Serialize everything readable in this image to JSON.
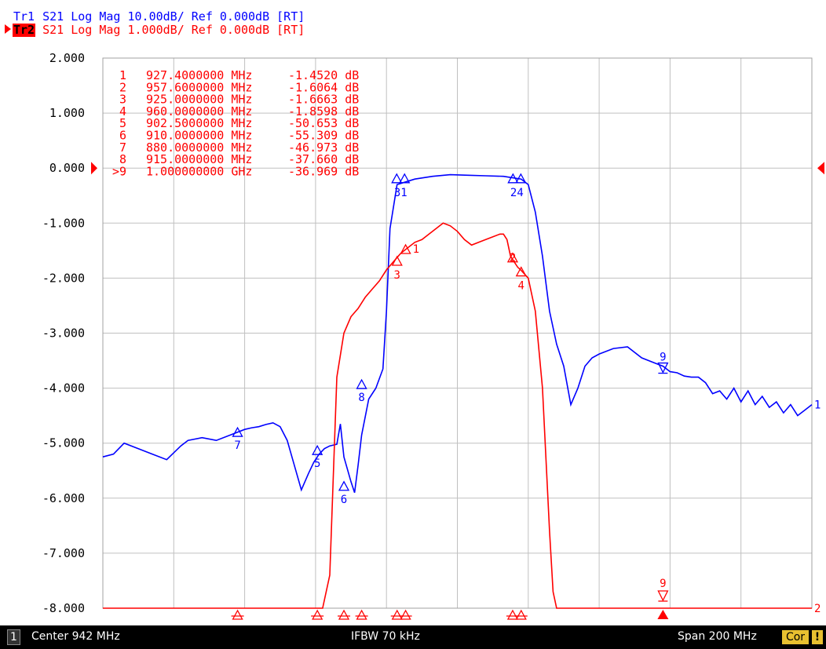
{
  "header": {
    "trace1": {
      "tag": "Tr1",
      "text": " S21 Log Mag 10.00dB/ Ref 0.000dB [RT]"
    },
    "trace2": {
      "tag": "Tr2",
      "text": " S21 Log Mag 1.000dB/ Ref 0.000dB [RT]"
    }
  },
  "status": {
    "channel": "1",
    "center": "Center 942 MHz",
    "ifbw": "IFBW 70 kHz",
    "span": "Span 200 MHz",
    "cor": "Cor",
    "excl": "!"
  },
  "colors": {
    "trace1": "#0000ff",
    "trace2": "#ff0000",
    "grid": "#c0c0c0",
    "axis_text": "#000000"
  },
  "chart_data": {
    "type": "line",
    "xlim": [
      842,
      1042
    ],
    "ylim": [
      -8,
      2
    ],
    "grid": true,
    "yticks": [
      "2.000",
      "1.000",
      "0.000",
      "-1.000",
      "-2.000",
      "-3.000",
      "-4.000",
      "-5.000",
      "-6.000",
      "-7.000",
      "-8.000"
    ],
    "ref_level": 0,
    "series": [
      {
        "name": "Tr1",
        "trace_label": "1",
        "x": [
          842,
          845,
          848,
          852,
          856,
          860,
          864,
          866,
          870,
          874,
          878,
          882,
          884,
          886,
          888,
          890,
          892,
          894,
          896,
          898,
          900,
          901.5,
          903,
          904.5,
          906,
          908,
          909,
          910,
          912,
          913,
          914,
          915,
          917,
          919,
          921,
          922,
          923,
          925,
          930,
          935,
          940,
          945,
          950,
          955,
          958,
          960,
          962,
          964,
          966,
          968,
          970,
          972,
          974,
          976,
          978,
          980,
          982,
          986,
          990,
          994,
          998,
          1000,
          1002,
          1004,
          1006,
          1008,
          1010,
          1012,
          1014,
          1016,
          1018,
          1020,
          1022,
          1024,
          1026,
          1028,
          1030,
          1032,
          1034,
          1036,
          1038,
          1040,
          1042
        ],
        "y": [
          -5.25,
          -5.2,
          -5.0,
          -5.1,
          -5.2,
          -5.3,
          -5.05,
          -4.95,
          -4.9,
          -4.95,
          -4.85,
          -4.75,
          -4.72,
          -4.7,
          -4.66,
          -4.63,
          -4.7,
          -4.95,
          -5.4,
          -5.85,
          -5.55,
          -5.35,
          -5.2,
          -5.1,
          -5.05,
          -5.02,
          -4.65,
          -5.25,
          -5.7,
          -5.9,
          -5.4,
          -4.85,
          -4.2,
          -4.0,
          -3.65,
          -2.6,
          -1.1,
          -0.3,
          -0.2,
          -0.15,
          -0.12,
          -0.13,
          -0.14,
          -0.15,
          -0.18,
          -0.2,
          -0.3,
          -0.8,
          -1.6,
          -2.6,
          -3.2,
          -3.6,
          -4.3,
          -4.0,
          -3.6,
          -3.45,
          -3.38,
          -3.28,
          -3.25,
          -3.45,
          -3.55,
          -3.6,
          -3.7,
          -3.72,
          -3.78,
          -3.8,
          -3.8,
          -3.9,
          -4.1,
          -4.05,
          -4.2,
          -4.0,
          -4.25,
          -4.05,
          -4.3,
          -4.15,
          -4.35,
          -4.25,
          -4.45,
          -4.3,
          -4.5,
          -4.4,
          -4.3
        ]
      },
      {
        "name": "Tr2",
        "trace_label": "2",
        "x": [
          842,
          880,
          903,
          904,
          906,
          908,
          910,
          912,
          914,
          916,
          918,
          920,
          922,
          924,
          926,
          928,
          930,
          932,
          934,
          936,
          938,
          940,
          942,
          944,
          946,
          948,
          950,
          952,
          954,
          955,
          956,
          957,
          958,
          959,
          960,
          962,
          964,
          966,
          968,
          969,
          970,
          1042
        ],
        "y": [
          -8.0,
          -8.0,
          -8.0,
          -8.0,
          -7.4,
          -3.8,
          -3.0,
          -2.7,
          -2.55,
          -2.35,
          -2.2,
          -2.05,
          -1.85,
          -1.7,
          -1.55,
          -1.45,
          -1.35,
          -1.3,
          -1.2,
          -1.1,
          -1.0,
          -1.05,
          -1.15,
          -1.3,
          -1.4,
          -1.35,
          -1.3,
          -1.25,
          -1.2,
          -1.2,
          -1.3,
          -1.6,
          -1.7,
          -1.8,
          -1.86,
          -2.0,
          -2.6,
          -4.0,
          -6.6,
          -7.7,
          -8.0,
          -8.0
        ]
      }
    ],
    "marker_table": [
      {
        "n": "1",
        "freq": "927.4000000 MHz",
        "value": "-1.4520 dB"
      },
      {
        "n": "2",
        "freq": "957.6000000 MHz",
        "value": "-1.6064 dB"
      },
      {
        "n": "3",
        "freq": "925.0000000 MHz",
        "value": "-1.6663 dB"
      },
      {
        "n": "4",
        "freq": "960.0000000 MHz",
        "value": "-1.8598 dB"
      },
      {
        "n": "5",
        "freq": "902.5000000 MHz",
        "value": "-50.653 dB"
      },
      {
        "n": "6",
        "freq": "910.0000000 MHz",
        "value": "-55.309 dB"
      },
      {
        "n": "7",
        "freq": "880.0000000 MHz",
        "value": "-46.973 dB"
      },
      {
        "n": "8",
        "freq": "915.0000000 MHz",
        "value": "-37.660 dB"
      },
      {
        "n": ">9",
        "freq": "1.000000000 GHz",
        "value": "-36.969 dB"
      }
    ],
    "tr1_markers": [
      {
        "label": "7",
        "x": 880,
        "y": -4.72
      },
      {
        "label": "5",
        "x": 902.5,
        "y": -5.05
      },
      {
        "label": "6",
        "x": 910,
        "y": -5.7
      },
      {
        "label": "8",
        "x": 915,
        "y": -3.85
      },
      {
        "label": "9",
        "x": 1000,
        "y": -3.6,
        "active": true
      }
    ],
    "tr1_marker_groups": [
      {
        "label": "31",
        "x": 926,
        "y": -0.28
      },
      {
        "label": "24",
        "x": 958.8,
        "y": -0.28
      }
    ],
    "tr2_markers": [
      {
        "label": "1",
        "x": 927.4,
        "y": -1.452,
        "label_pos": "right"
      },
      {
        "label": "3",
        "x": 925,
        "y": -1.666,
        "label_pos": "below"
      },
      {
        "label": "2",
        "x": 957.6,
        "y": -1.606,
        "label_pos": "inside"
      },
      {
        "label": "4",
        "x": 960,
        "y": -1.86,
        "label_pos": "below"
      }
    ],
    "tr2_bottom_markers": [
      {
        "x": 880
      },
      {
        "x": 902.5
      },
      {
        "x": 910
      },
      {
        "x": 915
      },
      {
        "x": 925
      },
      {
        "x": 927.4
      },
      {
        "x": 957.6
      },
      {
        "x": 960
      }
    ],
    "tr2_active_marker": {
      "label": "9",
      "x": 1000
    }
  }
}
